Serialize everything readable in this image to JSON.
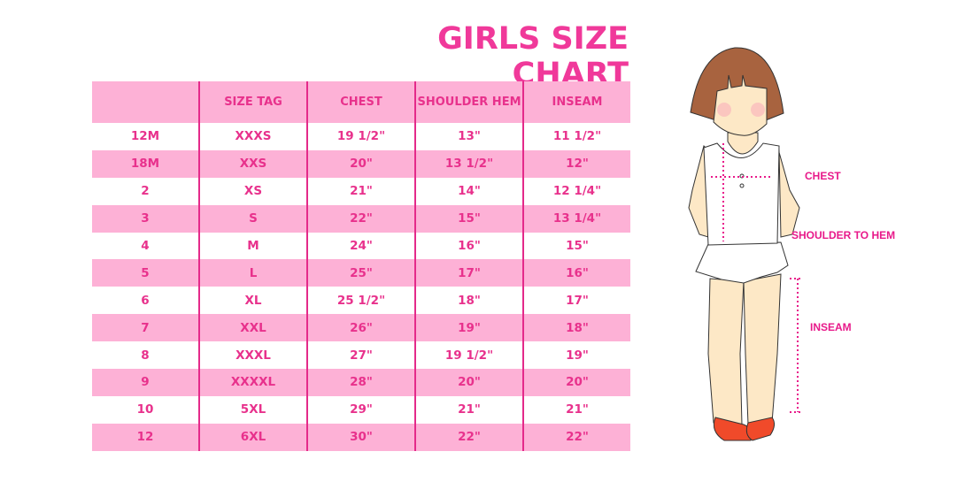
{
  "title": "GIRLS SIZE CHART",
  "table": {
    "headers": [
      "",
      "SIZE TAG",
      "CHEST",
      "SHOULDER HEM",
      "INSEAM"
    ],
    "rows": [
      [
        "12M",
        "XXXS",
        "19 1/2\"",
        "13\"",
        "11 1/2\""
      ],
      [
        "18M",
        "XXS",
        "20\"",
        "13 1/2\"",
        "12\""
      ],
      [
        "2",
        "XS",
        "21\"",
        "14\"",
        "12 1/4\""
      ],
      [
        "3",
        "S",
        "22\"",
        "15\"",
        "13 1/4\""
      ],
      [
        "4",
        "M",
        "24\"",
        "16\"",
        "15\""
      ],
      [
        "5",
        "L",
        "25\"",
        "17\"",
        "16\""
      ],
      [
        "6",
        "XL",
        "25 1/2\"",
        "18\"",
        "17\""
      ],
      [
        "7",
        "XXL",
        "26\"",
        "19\"",
        "18\""
      ],
      [
        "8",
        "XXXL",
        "27\"",
        "19 1/2\"",
        "19\""
      ],
      [
        "9",
        "XXXXL",
        "28\"",
        "20\"",
        "20\""
      ],
      [
        "10",
        "5XL",
        "29\"",
        "21\"",
        "21\""
      ],
      [
        "12",
        "6XL",
        "30\"",
        "22\"",
        "22\""
      ]
    ]
  },
  "figure": {
    "labels": {
      "chest": "CHEST",
      "shoulder": "SHOULDER TO HEM",
      "inseam": "INSEAM"
    }
  },
  "colors": {
    "accent": "#f0399a",
    "row_pink": "#fdb1d6",
    "measure_line": "#e8198a"
  }
}
